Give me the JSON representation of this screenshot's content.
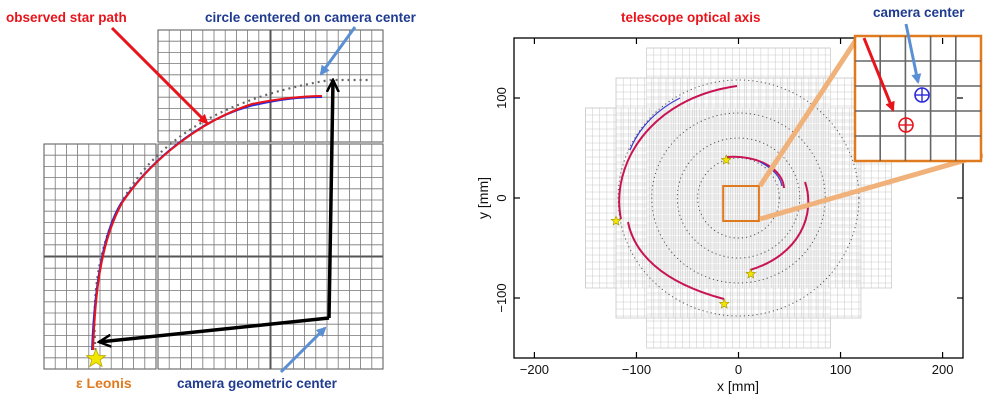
{
  "left_panel": {
    "labels": {
      "observed_star_path": "observed star path",
      "circle_centered": "circle centered on camera center",
      "star_name": "ε Leonis",
      "camera_geometric_center": "camera geometric center"
    },
    "colors": {
      "annotation_red": "#e8141b",
      "annotation_blue": "#1f3b8f",
      "star_label": "#e07a1f",
      "path_red": "#e8141b",
      "path_blue": "#2a2adb",
      "arrow_blue": "#5b8fd4",
      "star_fill": "#f2e600"
    }
  },
  "right_panel": {
    "labels": {
      "telescope_optical_axis": "telescope optical axis",
      "camera_center": "camera center"
    },
    "colors": {
      "zoom_box": "#e07a1f",
      "zoom_line": "#f0b27a",
      "optical_axis_marker": "#e8141b",
      "camera_center_marker": "#2a2adb"
    }
  },
  "chart_data": {
    "type": "scatter",
    "xlabel": "x [mm]",
    "ylabel": "y [mm]",
    "xlim": [
      -220,
      220
    ],
    "ylim": [
      -160,
      160
    ],
    "x_ticks": [
      -200,
      -100,
      0,
      100,
      200
    ],
    "y_ticks": [
      -100,
      0,
      100
    ],
    "x_tick_labels": [
      "−200",
      "−100",
      "0",
      "100",
      "200"
    ],
    "y_tick_labels": [
      "−100",
      "0",
      "100"
    ],
    "dotted_circle_radii": [
      40,
      60,
      85,
      118
    ],
    "star_positions": [
      {
        "x": -12,
        "y": 38
      },
      {
        "x": -120,
        "y": -23
      },
      {
        "x": 12,
        "y": -76
      },
      {
        "x": -14,
        "y": -106
      }
    ],
    "zoom_box": {
      "x0": -15,
      "x1": 20,
      "y0": -23,
      "y1": 12
    }
  }
}
